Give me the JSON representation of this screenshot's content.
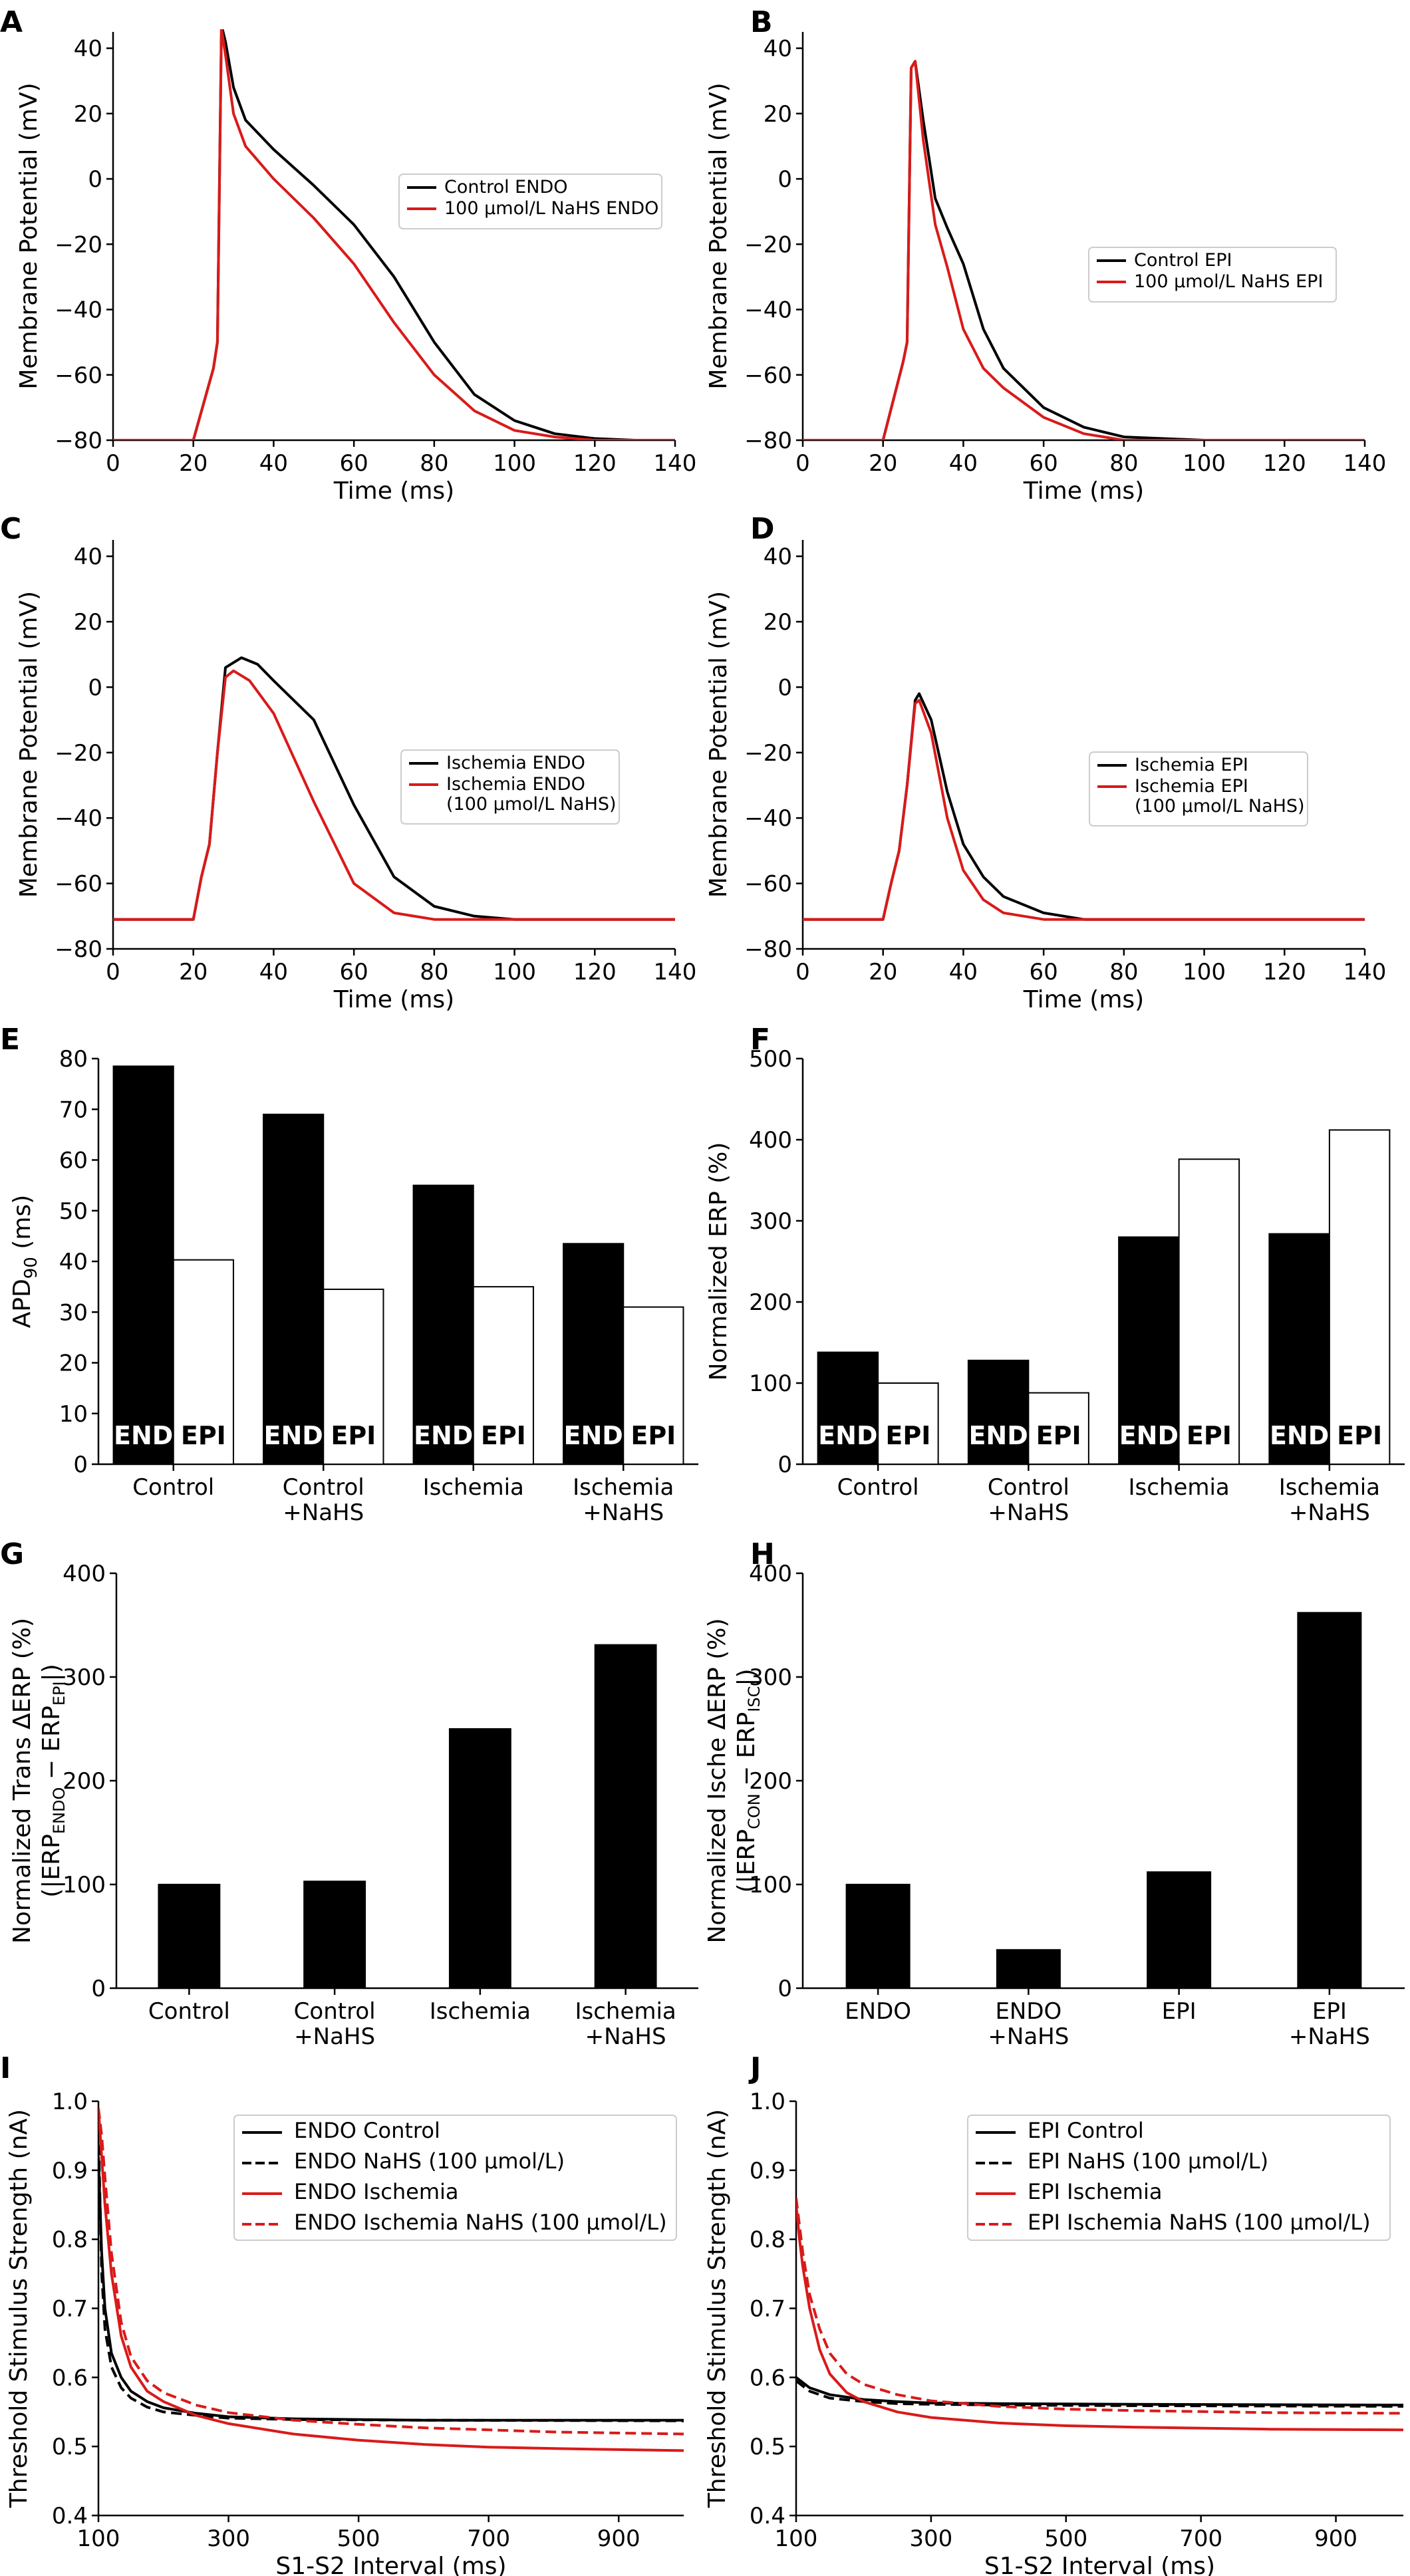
{
  "figure": {
    "panels": [
      {
        "id": "A",
        "label": "A"
      },
      {
        "id": "B",
        "label": "B"
      },
      {
        "id": "C",
        "label": "C"
      },
      {
        "id": "D",
        "label": "D"
      },
      {
        "id": "E",
        "label": "E"
      },
      {
        "id": "F",
        "label": "F"
      },
      {
        "id": "G",
        "label": "G"
      },
      {
        "id": "H",
        "label": "H"
      },
      {
        "id": "I",
        "label": "I"
      },
      {
        "id": "J",
        "label": "J"
      }
    ]
  },
  "colors": {
    "control": "#000000",
    "treated": "#d91a1a",
    "bar_fill": "#000000",
    "bar_open": "#ffffff"
  },
  "chart_data": [
    {
      "panel": "A",
      "type": "line",
      "xlabel": "Time (ms)",
      "ylabel": "Membrane Potential (mV)",
      "xlim": [
        0,
        140
      ],
      "ylim": [
        -80,
        45
      ],
      "xticks": [
        0,
        20,
        40,
        60,
        80,
        100,
        120,
        140
      ],
      "yticks": [
        -80,
        -60,
        -40,
        -20,
        0,
        20,
        40
      ],
      "legend_position": "center-right",
      "series": [
        {
          "name": "Control ENDO",
          "color": "#000000",
          "style": "solid",
          "x": [
            0,
            20,
            25,
            26,
            27,
            28,
            30,
            33,
            40,
            50,
            60,
            70,
            80,
            90,
            100,
            110,
            120,
            130,
            140
          ],
          "y": [
            -80,
            -80,
            -58,
            -50,
            47,
            42,
            28,
            18,
            9,
            -2,
            -14,
            -30,
            -50,
            -66,
            -74,
            -78,
            -79.5,
            -80,
            -80
          ]
        },
        {
          "name": "100 μmol/L NaHS ENDO",
          "color": "#d91a1a",
          "style": "solid",
          "x": [
            0,
            20,
            25,
            26,
            27,
            28,
            30,
            33,
            40,
            50,
            60,
            70,
            80,
            90,
            100,
            110,
            120,
            130,
            140
          ],
          "y": [
            -80,
            -80,
            -58,
            -50,
            46,
            38,
            20,
            10,
            0,
            -12,
            -26,
            -44,
            -60,
            -71,
            -77,
            -79,
            -80,
            -80,
            -80
          ]
        }
      ]
    },
    {
      "panel": "B",
      "type": "line",
      "xlabel": "Time (ms)",
      "ylabel": "Membrane Potential (mV)",
      "xlim": [
        0,
        140
      ],
      "ylim": [
        -80,
        45
      ],
      "xticks": [
        0,
        20,
        40,
        60,
        80,
        100,
        120,
        140
      ],
      "yticks": [
        -80,
        -60,
        -40,
        -20,
        0,
        20,
        40
      ],
      "legend_position": "center-right",
      "series": [
        {
          "name": "Control EPI",
          "color": "#000000",
          "style": "solid",
          "x": [
            0,
            20,
            25,
            26,
            27,
            28,
            30,
            33,
            36,
            40,
            45,
            50,
            60,
            70,
            80,
            100,
            140
          ],
          "y": [
            -80,
            -80,
            -56,
            -50,
            34,
            36,
            18,
            -6,
            -15,
            -26,
            -46,
            -58,
            -70,
            -76,
            -79,
            -80,
            -80
          ]
        },
        {
          "name": "100 μmol/L NaHS EPI",
          "color": "#d91a1a",
          "style": "solid",
          "x": [
            0,
            20,
            25,
            26,
            27,
            28,
            30,
            33,
            36,
            40,
            45,
            50,
            60,
            70,
            80,
            100,
            140
          ],
          "y": [
            -80,
            -80,
            -56,
            -50,
            34,
            36,
            12,
            -14,
            -27,
            -46,
            -58,
            -64,
            -73,
            -78,
            -80,
            -80,
            -80
          ]
        }
      ]
    },
    {
      "panel": "C",
      "type": "line",
      "xlabel": "Time (ms)",
      "ylabel": "Membrane Potential (mV)",
      "xlim": [
        0,
        140
      ],
      "ylim": [
        -80,
        45
      ],
      "xticks": [
        0,
        20,
        40,
        60,
        80,
        100,
        120,
        140
      ],
      "yticks": [
        -80,
        -60,
        -40,
        -20,
        0,
        20,
        40
      ],
      "legend_position": "center-right",
      "series": [
        {
          "name": "Ischemia ENDO",
          "color": "#000000",
          "style": "solid",
          "x": [
            0,
            20,
            22,
            24,
            26,
            28,
            32,
            36,
            40,
            50,
            60,
            70,
            80,
            90,
            100,
            140
          ],
          "y": [
            -71,
            -71,
            -58,
            -48,
            -20,
            6,
            9,
            7,
            2,
            -10,
            -36,
            -58,
            -67,
            -70,
            -71,
            -71
          ]
        },
        {
          "name": "Ischemia ENDO\n(100 μmol/L NaHS)",
          "color": "#d91a1a",
          "style": "solid",
          "x": [
            0,
            20,
            22,
            24,
            26,
            28,
            30,
            34,
            40,
            50,
            60,
            70,
            80,
            90,
            140
          ],
          "y": [
            -71,
            -71,
            -58,
            -48,
            -20,
            3,
            5,
            2,
            -8,
            -35,
            -60,
            -69,
            -71,
            -71,
            -71
          ]
        }
      ]
    },
    {
      "panel": "D",
      "type": "line",
      "xlabel": "Time (ms)",
      "ylabel": "Membrane Potential (mV)",
      "xlim": [
        0,
        140
      ],
      "ylim": [
        -80,
        45
      ],
      "xticks": [
        0,
        20,
        40,
        60,
        80,
        100,
        120,
        140
      ],
      "yticks": [
        -80,
        -60,
        -40,
        -20,
        0,
        20,
        40
      ],
      "legend_position": "center-right",
      "series": [
        {
          "name": "Ischemia EPI",
          "color": "#000000",
          "style": "solid",
          "x": [
            0,
            20,
            22,
            24,
            26,
            28,
            29,
            32,
            36,
            40,
            45,
            50,
            60,
            70,
            80,
            140
          ],
          "y": [
            -71,
            -71,
            -60,
            -50,
            -30,
            -4,
            -2,
            -10,
            -32,
            -48,
            -58,
            -64,
            -69,
            -71,
            -71,
            -71
          ]
        },
        {
          "name": "Ischemia EPI\n(100 μmol/L NaHS)",
          "color": "#d91a1a",
          "style": "solid",
          "x": [
            0,
            20,
            22,
            24,
            26,
            28,
            29,
            32,
            36,
            40,
            45,
            50,
            60,
            70,
            140
          ],
          "y": [
            -71,
            -71,
            -60,
            -50,
            -30,
            -5,
            -4,
            -14,
            -40,
            -56,
            -65,
            -69,
            -71,
            -71,
            -71
          ]
        }
      ]
    },
    {
      "panel": "E",
      "type": "bar",
      "categories": [
        "Control",
        "Control\n+NaHS",
        "Ischemia",
        "Ischemia\n+NaHS"
      ],
      "ylabel": "APD90 (ms)",
      "ylabel_main": "APD",
      "ylabel_sub": "90",
      "ylabel_tail": " (ms)",
      "ylim": [
        0,
        80
      ],
      "yticks": [
        0,
        10,
        20,
        30,
        40,
        50,
        60,
        70,
        80
      ],
      "bar_labels": [
        "END",
        "EPI"
      ],
      "series": [
        {
          "name": "ENDO",
          "fill": "#000000",
          "values": [
            78.5,
            69,
            55,
            43.5
          ]
        },
        {
          "name": "EPI",
          "fill": "#ffffff",
          "values": [
            40.3,
            34.5,
            35,
            31
          ]
        }
      ]
    },
    {
      "panel": "F",
      "type": "bar",
      "categories": [
        "Control",
        "Control\n+NaHS",
        "Ischemia",
        "Ischemia\n+NaHS"
      ],
      "ylabel": "Normalized ERP (%)",
      "ylim": [
        0,
        500
      ],
      "yticks": [
        0,
        100,
        200,
        300,
        400,
        500
      ],
      "bar_labels": [
        "END",
        "EPI"
      ],
      "series": [
        {
          "name": "ENDO",
          "fill": "#000000",
          "values": [
            138,
            128,
            280,
            284
          ]
        },
        {
          "name": "EPI",
          "fill": "#ffffff",
          "values": [
            100,
            88,
            376,
            412
          ]
        }
      ]
    },
    {
      "panel": "G",
      "type": "bar",
      "categories": [
        "Control",
        "Control\n+NaHS",
        "Ischemia",
        "Ischemia\n+NaHS"
      ],
      "ylabel_line1": "Normalized Trans ΔERP (%)",
      "ylabel_line2": {
        "pre": "(|ERP",
        "sub1": "ENDO",
        "mid": " − ERP",
        "sub2": "EPI",
        "post": "|)"
      },
      "ylim": [
        0,
        400
      ],
      "yticks": [
        0,
        100,
        200,
        300,
        400
      ],
      "series": [
        {
          "name": "Trans ΔERP",
          "fill": "#000000",
          "values": [
            100,
            103,
            250,
            331
          ]
        }
      ]
    },
    {
      "panel": "H",
      "type": "bar",
      "categories": [
        "ENDO",
        "ENDO\n+NaHS",
        "EPI",
        "EPI\n+NaHS"
      ],
      "ylabel_line1": "Normalized Ische ΔERP (%)",
      "ylabel_line2": {
        "pre": "(|ERP",
        "sub1": "CON",
        "mid": " − ERP",
        "sub2": "ISC",
        "post": "|)"
      },
      "ylim": [
        0,
        400
      ],
      "yticks": [
        0,
        100,
        200,
        300,
        400
      ],
      "series": [
        {
          "name": "Ische ΔERP",
          "fill": "#000000",
          "values": [
            100,
            37,
            112,
            362
          ]
        }
      ]
    },
    {
      "panel": "I",
      "type": "line",
      "xlabel": "S1-S2 Interval (ms)",
      "ylabel": "Threshold Stimulus Strength (nA)",
      "xlim": [
        100,
        1000
      ],
      "ylim": [
        0.4,
        1.0
      ],
      "xticks": [
        100,
        300,
        500,
        700,
        900
      ],
      "yticks": [
        0.4,
        0.5,
        0.6,
        0.7,
        0.8,
        0.9,
        1.0
      ],
      "legend_position": "top-right",
      "series": [
        {
          "name": "ENDO Control",
          "color": "#000000",
          "style": "solid",
          "x": [
            100,
            105,
            110,
            120,
            135,
            150,
            175,
            200,
            250,
            300,
            400,
            600,
            1000
          ],
          "y": [
            0.92,
            0.78,
            0.7,
            0.635,
            0.6,
            0.58,
            0.565,
            0.556,
            0.548,
            0.543,
            0.54,
            0.538,
            0.538
          ]
        },
        {
          "name": "ENDO NaHS (100 μmol/L)",
          "color": "#000000",
          "style": "dashed",
          "x": [
            100,
            105,
            110,
            120,
            135,
            150,
            175,
            200,
            250,
            300,
            400,
            600,
            1000
          ],
          "y": [
            0.96,
            0.75,
            0.67,
            0.615,
            0.585,
            0.57,
            0.557,
            0.55,
            0.545,
            0.541,
            0.539,
            0.538,
            0.537
          ]
        },
        {
          "name": "ENDO Ischemia",
          "color": "#d91a1a",
          "style": "solid",
          "x": [
            100,
            105,
            110,
            120,
            135,
            150,
            175,
            200,
            250,
            300,
            400,
            500,
            600,
            700,
            800,
            1000
          ],
          "y": [
            0.99,
            0.92,
            0.85,
            0.75,
            0.66,
            0.615,
            0.58,
            0.565,
            0.545,
            0.533,
            0.518,
            0.509,
            0.503,
            0.499,
            0.497,
            0.494
          ]
        },
        {
          "name": "ENDO Ischemia NaHS (100 μmol/L)",
          "color": "#d91a1a",
          "style": "dashed",
          "x": [
            100,
            105,
            110,
            120,
            135,
            150,
            175,
            200,
            250,
            300,
            400,
            500,
            600,
            800,
            1000
          ],
          "y": [
            0.99,
            0.95,
            0.89,
            0.78,
            0.68,
            0.63,
            0.595,
            0.578,
            0.56,
            0.549,
            0.538,
            0.532,
            0.527,
            0.521,
            0.518
          ]
        }
      ]
    },
    {
      "panel": "J",
      "type": "line",
      "xlabel": "S1-S2 Interval (ms)",
      "ylabel": "Threshold Stimulus Strength (nA)",
      "xlim": [
        100,
        1000
      ],
      "ylim": [
        0.4,
        1.0
      ],
      "xticks": [
        100,
        300,
        500,
        700,
        900
      ],
      "yticks": [
        0.4,
        0.5,
        0.6,
        0.7,
        0.8,
        0.9,
        1.0
      ],
      "legend_position": "top-right",
      "series": [
        {
          "name": "EPI Control",
          "color": "#000000",
          "style": "solid",
          "x": [
            100,
            120,
            150,
            200,
            250,
            300,
            400,
            600,
            1000
          ],
          "y": [
            0.6,
            0.585,
            0.575,
            0.568,
            0.565,
            0.563,
            0.562,
            0.561,
            0.56
          ]
        },
        {
          "name": "EPI NaHS (100 μmol/L)",
          "color": "#000000",
          "style": "dashed",
          "x": [
            100,
            120,
            150,
            200,
            250,
            300,
            400,
            600,
            1000
          ],
          "y": [
            0.595,
            0.58,
            0.57,
            0.565,
            0.562,
            0.561,
            0.56,
            0.559,
            0.558
          ]
        },
        {
          "name": "EPI Ischemia",
          "color": "#d91a1a",
          "style": "solid",
          "x": [
            100,
            105,
            110,
            120,
            135,
            150,
            175,
            200,
            250,
            300,
            400,
            500,
            600,
            800,
            1000
          ],
          "y": [
            0.85,
            0.8,
            0.76,
            0.7,
            0.64,
            0.605,
            0.578,
            0.565,
            0.55,
            0.542,
            0.534,
            0.53,
            0.528,
            0.525,
            0.524
          ]
        },
        {
          "name": "EPI Ischemia NaHS (100 μmol/L)",
          "color": "#d91a1a",
          "style": "dashed",
          "x": [
            100,
            105,
            110,
            120,
            135,
            150,
            175,
            200,
            250,
            300,
            400,
            500,
            600,
            800,
            1000
          ],
          "y": [
            0.86,
            0.82,
            0.78,
            0.72,
            0.67,
            0.635,
            0.605,
            0.59,
            0.575,
            0.566,
            0.558,
            0.554,
            0.552,
            0.549,
            0.548
          ]
        }
      ]
    }
  ]
}
